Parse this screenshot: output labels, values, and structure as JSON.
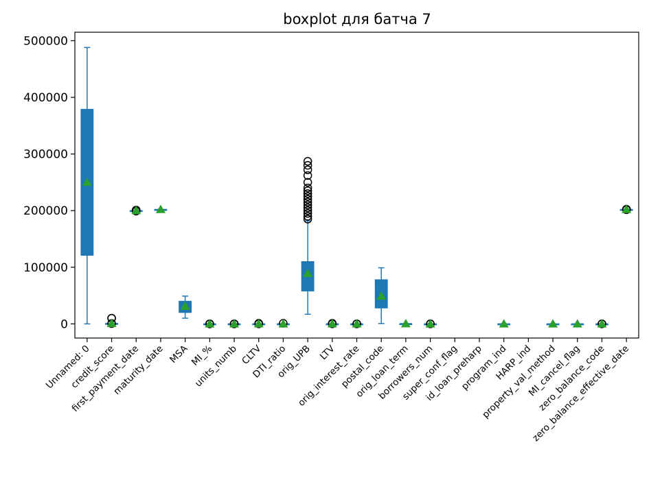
{
  "chart_data": {
    "type": "boxplot",
    "title": "boxplot для батча 7",
    "xlabel": "",
    "ylabel": "",
    "ylim": [
      -25000,
      515000
    ],
    "yticks": [
      0,
      100000,
      200000,
      300000,
      400000,
      500000
    ],
    "ytick_labels": [
      "0",
      "100000",
      "200000",
      "300000",
      "400000",
      "500000"
    ],
    "grid": false,
    "colors": {
      "box": "#1f77b4",
      "mean_marker": "#2ca02c",
      "flier": "#000000"
    },
    "categories": [
      "Unnamed: 0",
      "credit_score",
      "first_payment_date",
      "maturity_date",
      "MSA",
      "MI_%",
      "units_numb",
      "CLTV",
      "DTI_ratio",
      "orig_UPB",
      "LTV",
      "orig_interest_rate",
      "postal_code",
      "orig_loan_term",
      "borrowers_num",
      "super_conf_flag",
      "id_loan_preharp",
      "program_ind",
      "HARP_ind",
      "property_val_method",
      "MI_cancel_flag",
      "zero_balance_code",
      "zero_balance_effective_date"
    ],
    "boxes": [
      {
        "whislo": 0,
        "q1": 121000,
        "med": 250000,
        "q3": 379000,
        "whishi": 488000,
        "mean": 250000,
        "fliers": []
      },
      {
        "whislo": 690,
        "q1": 730,
        "med": 760,
        "q3": 785,
        "whishi": 820,
        "mean": 755,
        "fliers": [
          9999,
          9999,
          600,
          550
        ]
      },
      {
        "whislo": 200000,
        "q1": 200000,
        "med": 200000,
        "q3": 200000,
        "whishi": 200000,
        "mean": 200000,
        "fliers": [
          201000,
          199000
        ]
      },
      {
        "whislo": 202000,
        "q1": 202000,
        "med": 202000,
        "q3": 202000,
        "whishi": 202000,
        "mean": 202000,
        "fliers": []
      },
      {
        "whislo": 10000,
        "q1": 20000,
        "med": 30000,
        "q3": 40000,
        "whishi": 49000,
        "mean": 31000,
        "fliers": []
      },
      {
        "whislo": 0,
        "q1": 0,
        "med": 0,
        "q3": 0,
        "whishi": 0,
        "mean": 1,
        "fliers": [
          30,
          25,
          12
        ]
      },
      {
        "whislo": 1,
        "q1": 1,
        "med": 1,
        "q3": 1,
        "whishi": 1,
        "mean": 1,
        "fliers": [
          2,
          3,
          4
        ]
      },
      {
        "whislo": 40,
        "q1": 70,
        "med": 80,
        "q3": 90,
        "whishi": 100,
        "mean": 78,
        "fliers": [
          999,
          20
        ]
      },
      {
        "whislo": 15,
        "q1": 30,
        "med": 38,
        "q3": 45,
        "whishi": 60,
        "mean": 37,
        "fliers": [
          999
        ]
      },
      {
        "whislo": 17000,
        "q1": 58000,
        "med": 85000,
        "q3": 110000,
        "whishi": 182000,
        "mean": 89000,
        "fliers": [
          185000,
          190000,
          195000,
          200000,
          205000,
          210000,
          215000,
          220000,
          225000,
          230000,
          235000,
          240000,
          250000,
          262000,
          272000,
          280000,
          287000
        ]
      },
      {
        "whislo": 40,
        "q1": 70,
        "med": 80,
        "q3": 90,
        "whishi": 100,
        "mean": 78,
        "fliers": [
          999,
          20
        ]
      },
      {
        "whislo": 3,
        "q1": 4,
        "med": 4.5,
        "q3": 5,
        "whishi": 6,
        "mean": 4.6,
        "fliers": [
          8,
          2
        ]
      },
      {
        "whislo": 600,
        "q1": 28000,
        "med": 50000,
        "q3": 78000,
        "whishi": 99000,
        "mean": 49000,
        "fliers": []
      },
      {
        "whislo": 360,
        "q1": 360,
        "med": 360,
        "q3": 360,
        "whishi": 360,
        "mean": 350,
        "fliers": []
      },
      {
        "whislo": 1,
        "q1": 1,
        "med": 2,
        "q3": 2,
        "whishi": 2,
        "mean": 1.5,
        "fliers": [
          3,
          99
        ]
      },
      null,
      null,
      {
        "whislo": 9,
        "q1": 9,
        "med": 9,
        "q3": 9,
        "whishi": 9,
        "mean": 9,
        "fliers": []
      },
      null,
      {
        "whislo": 2,
        "q1": 2,
        "med": 2,
        "q3": 2,
        "whishi": 2,
        "mean": 2,
        "fliers": []
      },
      {
        "whislo": 9,
        "q1": 9,
        "med": 9,
        "q3": 9,
        "whishi": 9,
        "mean": 9,
        "fliers": []
      },
      {
        "whislo": 1,
        "q1": 1,
        "med": 1,
        "q3": 1,
        "whishi": 1,
        "mean": 1,
        "fliers": [
          3,
          9
        ]
      },
      {
        "whislo": 202000,
        "q1": 202000,
        "med": 202000,
        "q3": 202000,
        "whishi": 202000,
        "mean": 202000,
        "fliers": [
          201500,
          202500
        ]
      }
    ]
  }
}
